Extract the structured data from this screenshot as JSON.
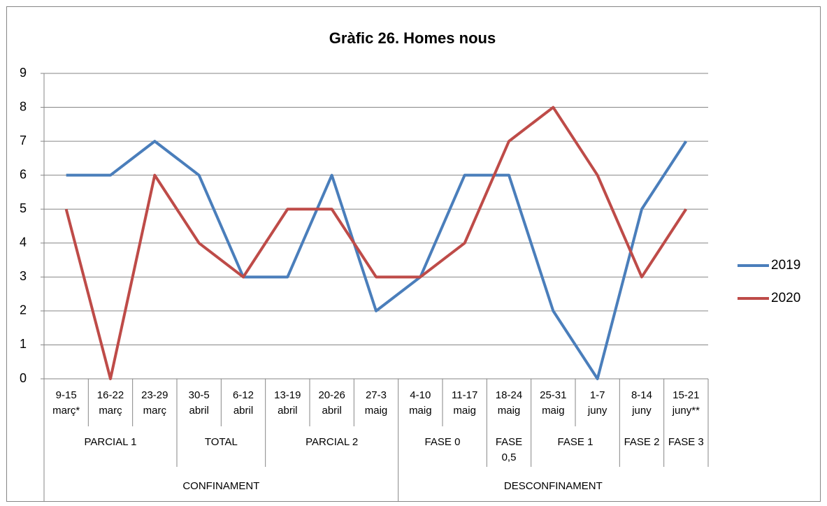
{
  "chart_data": {
    "type": "line",
    "title": "Gràfic 26. Homes nous",
    "categories": [
      "9-15\nmarç*",
      "16-22\nmarç",
      "23-29\nmarç",
      "30-5\nabril",
      "6-12\nabril",
      "13-19\nabril",
      "20-26\nabril",
      "27-3\nmaig",
      "4-10\nmaig",
      "11-17\nmaig",
      "18-24\nmaig",
      "25-31\nmaig",
      "1-7\njuny",
      "8-14\njuny",
      "15-21\njuny**"
    ],
    "groups": [
      {
        "label": "PARCIAL 1",
        "span": 3
      },
      {
        "label": "TOTAL",
        "span": 2
      },
      {
        "label": "PARCIAL 2",
        "span": 3
      },
      {
        "label": "FASE 0",
        "span": 2
      },
      {
        "label": "FASE\n0,5",
        "span": 1
      },
      {
        "label": "FASE 1",
        "span": 2
      },
      {
        "label": "FASE 2",
        "span": 1
      },
      {
        "label": "FASE 3",
        "span": 1
      }
    ],
    "supergroups": [
      {
        "label": "CONFINAMENT",
        "span": 8
      },
      {
        "label": "DESCONFINAMENT",
        "span": 7
      }
    ],
    "series": [
      {
        "name": "2019",
        "color": "#4a7ebb",
        "values": [
          6,
          6,
          7,
          6,
          3,
          3,
          6,
          2,
          3,
          6,
          6,
          2,
          0,
          5,
          7
        ]
      },
      {
        "name": "2020",
        "color": "#be4b48",
        "values": [
          5,
          0,
          6,
          4,
          3,
          5,
          5,
          3,
          3,
          4,
          7,
          8,
          6,
          3,
          5
        ]
      }
    ],
    "ylim": [
      0,
      9
    ],
    "yticks": [
      0,
      1,
      2,
      3,
      4,
      5,
      6,
      7,
      8,
      9
    ],
    "grid": true,
    "legend": "right"
  }
}
